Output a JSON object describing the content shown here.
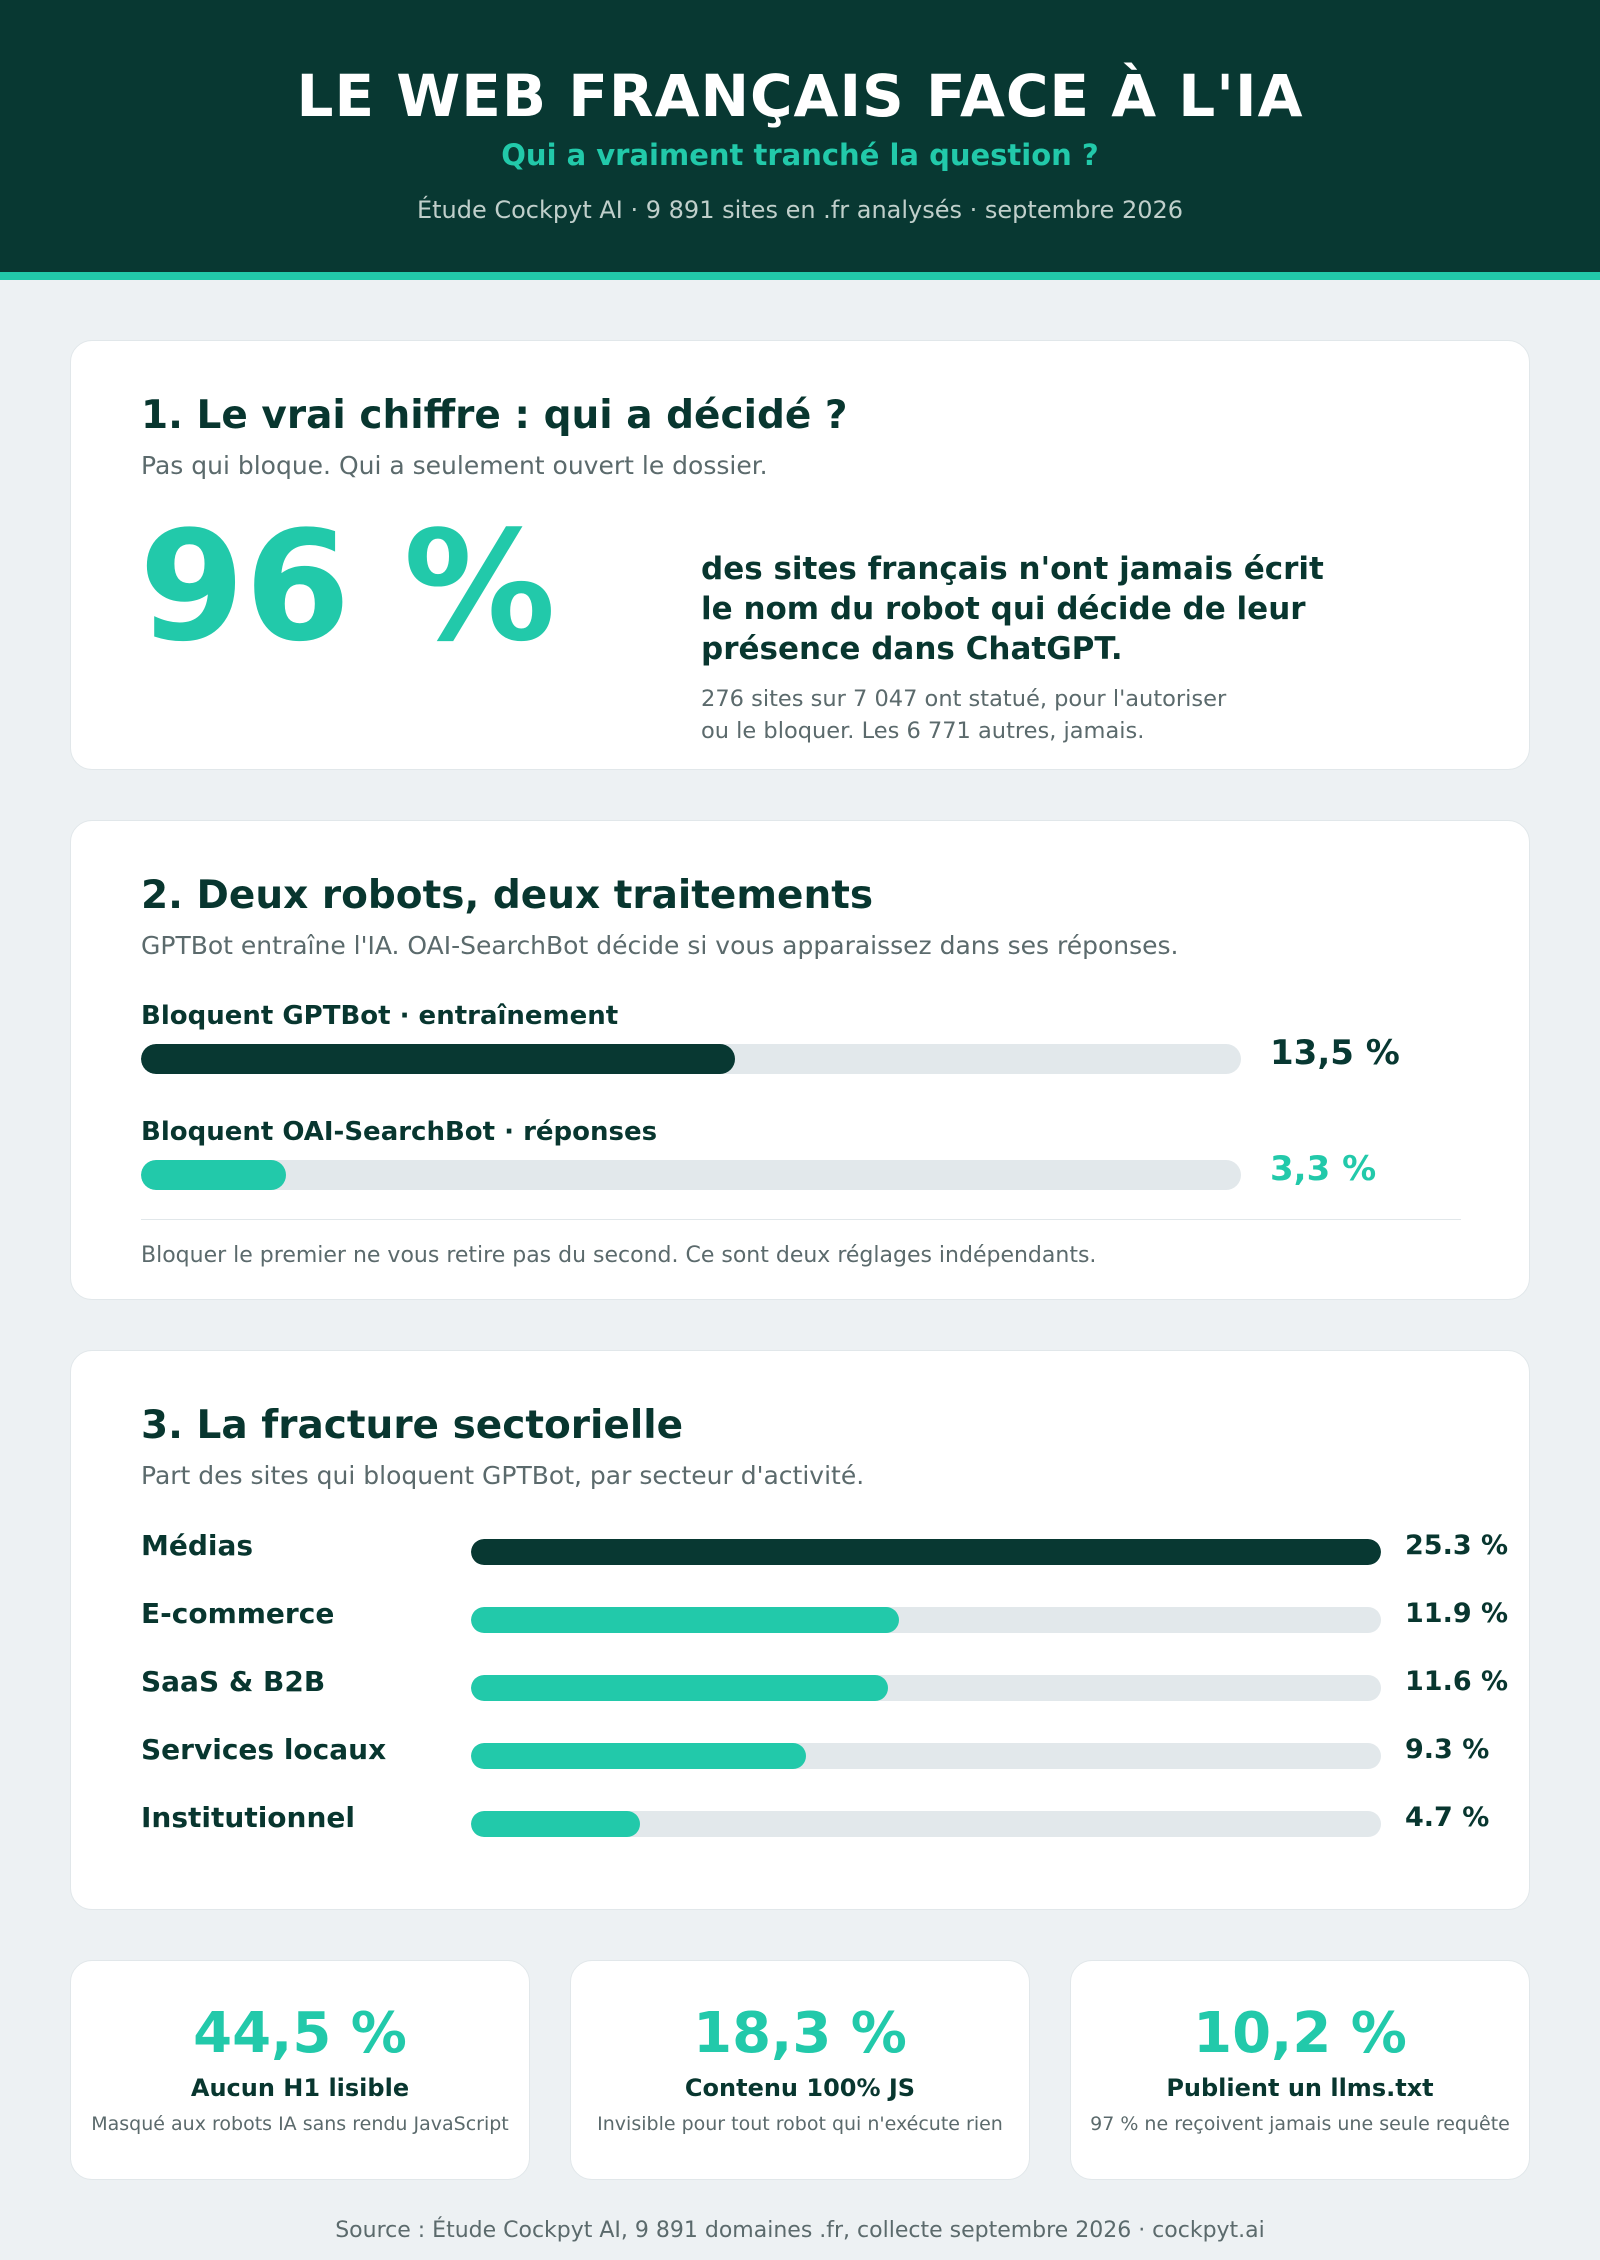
{
  "header": {
    "title": "LE WEB FRANÇAIS FACE À L'IA",
    "subtitle": "Qui a vraiment tranché la question ?",
    "meta": "Étude Cockpyt AI · 9 891 sites en .fr analysés · septembre 2026"
  },
  "section1": {
    "title": "1. Le vrai chiffre : qui a décidé ?",
    "subtitle": "Pas qui bloque. Qui a seulement ouvert le dossier.",
    "big_value": "96 %",
    "statement_lines": [
      "des sites français n'ont jamais écrit",
      "le nom du robot qui décide de leur",
      "présence dans ChatGPT."
    ],
    "note_lines": [
      "276 sites sur 7 047 ont statué, pour l'autoriser",
      "ou le bloquer. Les 6 771 autres, jamais."
    ]
  },
  "section2": {
    "title": "2. Deux robots, deux traitements",
    "subtitle": "GPTBot entraîne l'IA. OAI-SearchBot décide si vous apparaissez dans ses réponses.",
    "bars": [
      {
        "label": "Bloquent GPTBot · entraînement",
        "value": 13.5,
        "value_label": "13,5 %",
        "color": "#083832"
      },
      {
        "label": "Bloquent OAI-SearchBot · réponses",
        "value": 3.3,
        "value_label": "3,3 %",
        "color": "#22c9aa"
      }
    ],
    "footnote": "Bloquer le premier ne vous retire pas du second. Ce sont deux réglages indépendants."
  },
  "section3": {
    "title": "3. La fracture sectorielle",
    "subtitle": "Part des sites qui bloquent GPTBot, par secteur d'activité."
  },
  "chart_data": {
    "type": "bar",
    "orientation": "horizontal",
    "categories": [
      "Médias",
      "E-commerce",
      "SaaS & B2B",
      "Services locaux",
      "Institutionnel"
    ],
    "values": [
      25.3,
      11.9,
      11.6,
      9.3,
      4.7
    ],
    "value_labels": [
      "25.3 %",
      "11.9 %",
      "11.6 %",
      "9.3 %",
      "4.7 %"
    ],
    "xlim": [
      0,
      25.3
    ],
    "colors": {
      "highlight": "#083832",
      "default": "#22c9aa",
      "track": "#e2e8eb"
    }
  },
  "kpis": [
    {
      "value": "44,5 %",
      "label": "Aucun H1 lisible",
      "desc": "Masqué aux robots IA sans rendu JavaScript"
    },
    {
      "value": "18,3 %",
      "label": "Contenu 100% JS",
      "desc": "Invisible pour tout robot qui n'exécute rien"
    },
    {
      "value": "10,2 %",
      "label": "Publient un llms.txt",
      "desc": "97 % ne reçoivent jamais une seule requête"
    }
  ],
  "footer": {
    "source": "Source : Étude Cockpyt AI, 9 891 domaines .fr, collecte septembre 2026 · cockpyt.ai"
  }
}
